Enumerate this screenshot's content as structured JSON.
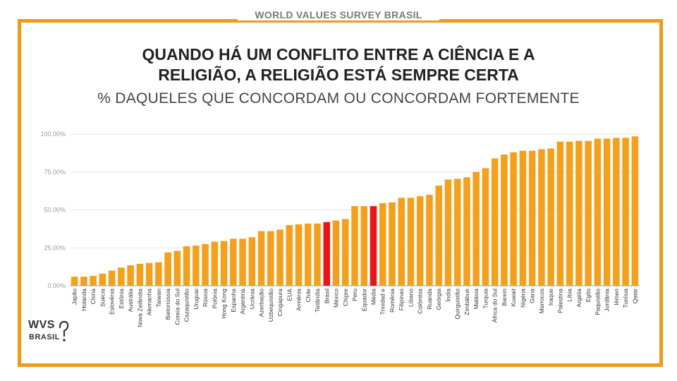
{
  "header": {
    "label": "WORLD VALUES SURVEY BRASIL"
  },
  "logo": {
    "line1": "WVS",
    "line2": "BRASIL",
    "icon": "question-speech-icon"
  },
  "colors": {
    "frame": "#f29a12",
    "bar": "#f5a01c",
    "highlight": "#e8151b",
    "grid": "#e6e6e6"
  },
  "chart_data": {
    "type": "bar",
    "title_line1": "QUANDO HÁ UM CONFLITO ENTRE A CIÊNCIA E A",
    "title_line2": "RELIGIÃO, A RELIGIÃO ESTÁ SEMPRE CERTA",
    "subtitle": "% DAQUELES QUE CONCORDAM OU CONCORDAM FORTEMENTE",
    "ylim": [
      0,
      100
    ],
    "yticks": [
      0,
      25,
      50,
      75,
      100
    ],
    "ytick_labels": [
      "0.00%",
      "25.00%",
      "50.00%",
      "75.00%",
      "100.00%"
    ],
    "grid": true,
    "highlighted": [
      "Brasil",
      "Média"
    ],
    "categories": [
      "Japão",
      "Holanda",
      "China",
      "Suécia",
      "Eslovênia",
      "Estônia",
      "Austrália",
      "Nova Zelândia",
      "Alemanha",
      "Taiwan",
      "Bielorrússia",
      "Coreia do Sul",
      "Cazaquistão",
      "Uruguai",
      "Rússia",
      "Polônia",
      "Hong Kong",
      "Espanha",
      "Argentina",
      "Ucrânia",
      "Azerbaijão",
      "Uzbequistão",
      "Cingapura",
      "EUA",
      "Armênia",
      "Chile",
      "Tailândia",
      "Brasil",
      "México",
      "Chipre",
      "Peru",
      "Equador",
      "Média",
      "Trinidad e",
      "Romênia",
      "Filipinas",
      "Líbano",
      "Colômbia",
      "Ruanda",
      "Geórgia",
      "Índia",
      "Quirguistão",
      "Zimbábue",
      "Malásia",
      "Turquia",
      "África do Sul",
      "Barein",
      "Kuwait",
      "Nigéria",
      "Gana",
      "Marrocos",
      "Iraque",
      "Palestina",
      "Líbia",
      "Argélia",
      "Egito",
      "Paquistão",
      "Jordânia",
      "Iêmen",
      "Tunísia",
      "Qatar"
    ],
    "values": [
      6,
      6,
      6.5,
      8,
      10,
      12,
      13.5,
      14.5,
      15,
      15.5,
      22,
      23,
      26,
      26.5,
      27.5,
      29,
      29.5,
      31,
      31,
      32,
      36,
      36,
      37,
      40,
      40.5,
      41,
      41,
      42,
      43,
      44,
      52.5,
      52.5,
      52.5,
      54.5,
      55,
      58,
      58,
      59,
      60,
      66,
      70,
      70.5,
      71.5,
      75,
      77.5,
      84,
      86.5,
      88,
      89,
      89,
      90,
      90.5,
      95,
      95,
      95.5,
      95.5,
      97,
      97,
      97.5,
      97.5,
      98.5
    ]
  }
}
